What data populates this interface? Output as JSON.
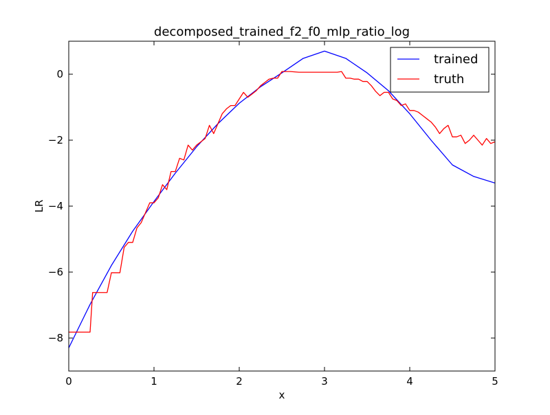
{
  "chart_data": {
    "type": "line",
    "title": "decomposed_trained_f2_f0_mlp_ratio_log",
    "xlabel": "x",
    "ylabel": "LR",
    "xlim": [
      0,
      5
    ],
    "ylim": [
      -9,
      1
    ],
    "x_ticks": [
      0,
      1,
      2,
      3,
      4,
      5
    ],
    "x_tick_labels": [
      "0",
      "1",
      "2",
      "3",
      "4",
      "5"
    ],
    "y_ticks": [
      -8,
      -6,
      -4,
      -2,
      0
    ],
    "y_tick_labels": [
      "−8",
      "−6",
      "−4",
      "−2",
      "0"
    ],
    "grid": false,
    "legend_position": "top-right",
    "series": [
      {
        "name": "trained",
        "color": "#0000ff",
        "x": [
          0,
          0.25,
          0.5,
          0.75,
          1,
          1.25,
          1.5,
          1.75,
          2,
          2.25,
          2.5,
          2.75,
          3,
          3.25,
          3.5,
          3.75,
          4,
          4.25,
          4.5,
          4.75,
          5
        ],
        "y": [
          -8.3,
          -6.98,
          -5.8,
          -4.76,
          -3.86,
          -3.0,
          -2.2,
          -1.5,
          -0.88,
          -0.38,
          0.04,
          0.48,
          0.7,
          0.48,
          0.04,
          -0.5,
          -1.2,
          -2.0,
          -2.75,
          -3.1,
          -3.3
        ]
      },
      {
        "name": "truth",
        "color": "#ff0000",
        "x": [
          0,
          0.25,
          0.28,
          0.45,
          0.5,
          0.6,
          0.65,
          0.7,
          0.75,
          0.8,
          0.85,
          0.9,
          0.95,
          1.0,
          1.05,
          1.1,
          1.15,
          1.2,
          1.25,
          1.3,
          1.35,
          1.4,
          1.45,
          1.5,
          1.55,
          1.6,
          1.65,
          1.7,
          1.75,
          1.8,
          1.85,
          1.9,
          1.95,
          2.0,
          2.05,
          2.1,
          2.15,
          2.2,
          2.25,
          2.3,
          2.35,
          2.4,
          2.45,
          2.5,
          2.6,
          2.7,
          2.8,
          2.9,
          3.0,
          3.1,
          3.15,
          3.2,
          3.25,
          3.3,
          3.35,
          3.4,
          3.45,
          3.5,
          3.55,
          3.6,
          3.65,
          3.7,
          3.75,
          3.8,
          3.85,
          3.9,
          3.95,
          4.0,
          4.05,
          4.1,
          4.15,
          4.2,
          4.25,
          4.3,
          4.35,
          4.4,
          4.45,
          4.5,
          4.55,
          4.6,
          4.65,
          4.7,
          4.75,
          4.8,
          4.85,
          4.9,
          4.95,
          5.0
        ],
        "y": [
          -7.82,
          -7.82,
          -6.62,
          -6.62,
          -6.02,
          -6.02,
          -5.25,
          -5.1,
          -5.1,
          -4.66,
          -4.5,
          -4.2,
          -3.9,
          -3.9,
          -3.75,
          -3.35,
          -3.5,
          -2.95,
          -2.95,
          -2.55,
          -2.6,
          -2.15,
          -2.3,
          -2.15,
          -2.05,
          -1.95,
          -1.55,
          -1.8,
          -1.5,
          -1.2,
          -1.05,
          -0.95,
          -0.95,
          -0.75,
          -0.55,
          -0.7,
          -0.6,
          -0.5,
          -0.35,
          -0.25,
          -0.15,
          -0.12,
          -0.12,
          0.08,
          0.08,
          0.06,
          0.06,
          0.06,
          0.06,
          0.06,
          0.06,
          0.08,
          -0.12,
          -0.12,
          -0.15,
          -0.15,
          -0.22,
          -0.22,
          -0.35,
          -0.52,
          -0.65,
          -0.55,
          -0.55,
          -0.75,
          -0.8,
          -0.95,
          -0.9,
          -1.1,
          -1.1,
          -1.15,
          -1.25,
          -1.35,
          -1.45,
          -1.6,
          -1.8,
          -1.65,
          -1.55,
          -1.9,
          -1.9,
          -1.85,
          -2.1,
          -2.0,
          -1.85,
          -2.0,
          -2.15,
          -1.95,
          -2.1,
          -2.05
        ]
      }
    ]
  }
}
